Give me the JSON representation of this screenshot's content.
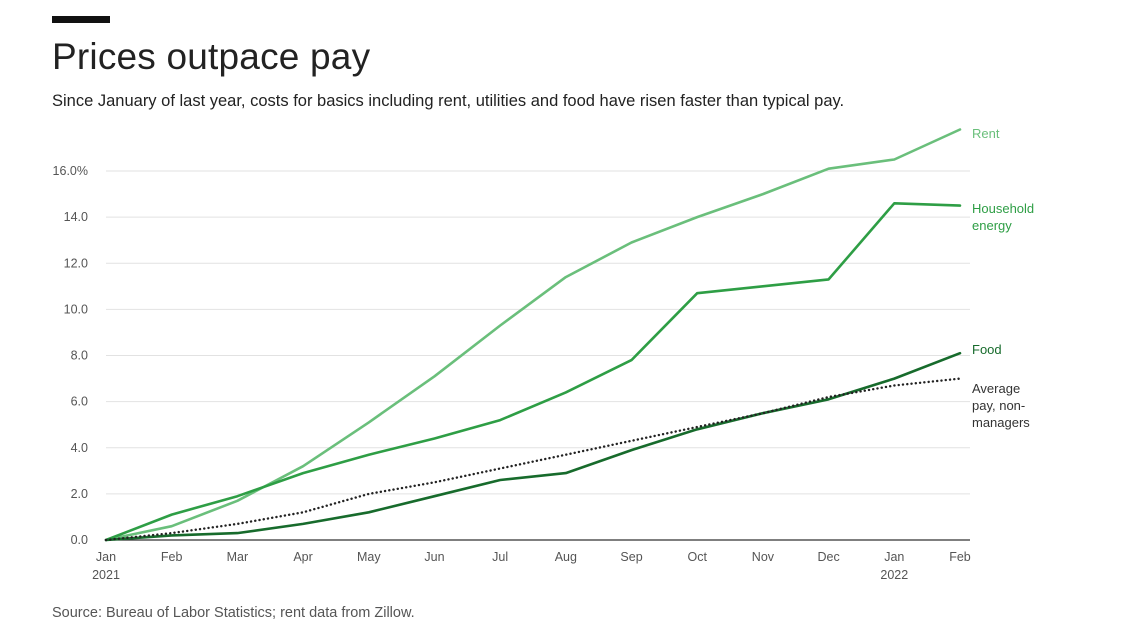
{
  "title": "Prices outpace pay",
  "subtitle": "Since January of last year, costs for basics including rent, utilities and food have risen faster than typical pay.",
  "source": "Source: Bureau of Labor Statistics; rent data from Zillow.",
  "chart_data": {
    "type": "line",
    "x": [
      "Jan",
      "Feb",
      "Mar",
      "Apr",
      "May",
      "Jun",
      "Jul",
      "Aug",
      "Sep",
      "Oct",
      "Nov",
      "Dec",
      "Jan",
      "Feb"
    ],
    "x_year_labels": [
      {
        "index": 0,
        "label": "2021"
      },
      {
        "index": 12,
        "label": "2022"
      }
    ],
    "ylim": [
      0,
      16
    ],
    "yticks": [
      {
        "value": 0,
        "label": "0.0"
      },
      {
        "value": 2,
        "label": "2.0"
      },
      {
        "value": 4,
        "label": "4.0"
      },
      {
        "value": 6,
        "label": "6.0"
      },
      {
        "value": 8,
        "label": "8.0"
      },
      {
        "value": 10,
        "label": "10.0"
      },
      {
        "value": 12,
        "label": "12.0"
      },
      {
        "value": 14,
        "label": "14.0"
      },
      {
        "value": 16,
        "label": "16.0%"
      }
    ],
    "grid": true,
    "series": [
      {
        "name": "Rent",
        "label_lines": [
          "Rent"
        ],
        "color": "#6abf7b",
        "style": "solid",
        "values": [
          0,
          0.6,
          1.7,
          3.2,
          5.1,
          7.1,
          9.3,
          11.4,
          12.9,
          14.0,
          15.0,
          16.1,
          16.5,
          17.8
        ]
      },
      {
        "name": "Household energy",
        "label_lines": [
          "Household",
          "energy"
        ],
        "color": "#2e9e45",
        "style": "solid",
        "values": [
          0,
          1.1,
          1.9,
          2.9,
          3.7,
          4.4,
          5.2,
          6.4,
          7.8,
          10.7,
          11.0,
          11.3,
          14.6,
          14.5
        ]
      },
      {
        "name": "Food",
        "label_lines": [
          "Food"
        ],
        "color": "#176b2c",
        "style": "solid",
        "values": [
          0,
          0.2,
          0.3,
          0.7,
          1.2,
          1.9,
          2.6,
          2.9,
          3.9,
          4.8,
          5.5,
          6.1,
          7.0,
          8.1
        ]
      },
      {
        "name": "Average pay, non-managers",
        "label_lines": [
          "Average",
          "pay, non-",
          "managers"
        ],
        "color": "#222222",
        "style": "dotted",
        "values": [
          0,
          0.3,
          0.7,
          1.2,
          2.0,
          2.5,
          3.1,
          3.7,
          4.3,
          4.9,
          5.5,
          6.2,
          6.7,
          7.0
        ]
      }
    ]
  }
}
